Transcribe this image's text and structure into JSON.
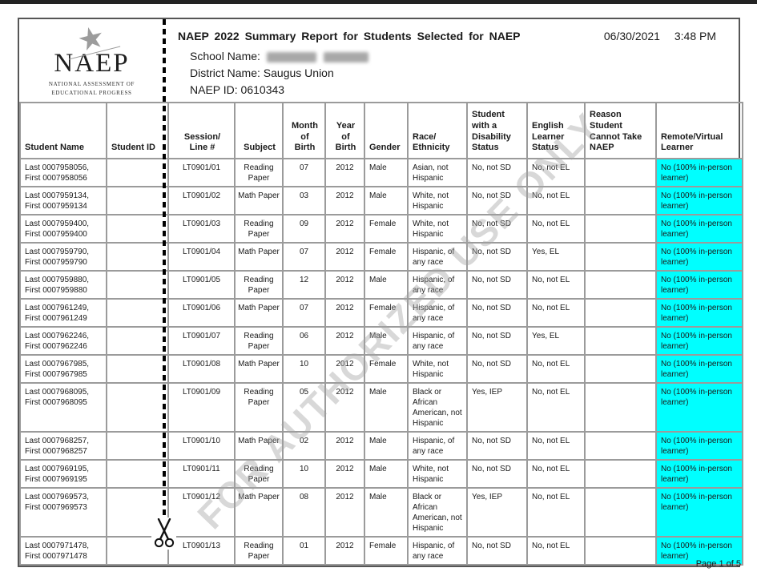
{
  "header": {
    "logo": {
      "acronym": "NAEP",
      "subtitle": "NATIONAL ASSESSMENT OF EDUCATIONAL PROGRESS"
    },
    "title": "NAEP 2022 Summary Report for Students Selected for NAEP",
    "date": "06/30/2021",
    "time": "3:48 PM",
    "school_label": "School Name:",
    "district_label": "District Name:",
    "district_value": "Saugus Union",
    "naep_id_label": "NAEP ID:",
    "naep_id_value": "0610343"
  },
  "watermark": "FOR AUTHORIZED USE ONLY",
  "footer": {
    "page_text": "Page 1 of 5"
  },
  "table": {
    "highlight_color": "#00ffff",
    "columns": [
      {
        "key": "name",
        "label": "Student Name"
      },
      {
        "key": "id",
        "label": "Student ID"
      },
      {
        "key": "session",
        "label": "Session/\nLine #"
      },
      {
        "key": "subject",
        "label": "Subject"
      },
      {
        "key": "month",
        "label": "Month\nof\nBirth"
      },
      {
        "key": "year",
        "label": "Year\nof\nBirth"
      },
      {
        "key": "gender",
        "label": "Gender"
      },
      {
        "key": "race",
        "label": "Race/\nEthnicity"
      },
      {
        "key": "disability",
        "label": "Student\nwith a\nDisability\nStatus"
      },
      {
        "key": "english",
        "label": "English\nLearner\nStatus"
      },
      {
        "key": "reason",
        "label": "Reason\nStudent\nCannot Take\nNAEP"
      },
      {
        "key": "remote",
        "label": "Remote/Virtual\nLearner"
      }
    ],
    "rows": [
      {
        "name": "Last 0007958056, First 0007958056",
        "id": "",
        "session": "LT0901/01",
        "subject": "Reading Paper",
        "month": "07",
        "year": "2012",
        "gender": "Male",
        "race": "Asian, not Hispanic",
        "disability": "No, not SD",
        "english": "No, not EL",
        "reason": "",
        "remote": "No (100% in-person learner)"
      },
      {
        "name": "Last 0007959134, First 0007959134",
        "id": "",
        "session": "LT0901/02",
        "subject": "Math Paper",
        "month": "03",
        "year": "2012",
        "gender": "Male",
        "race": "White, not Hispanic",
        "disability": "No, not SD",
        "english": "No, not EL",
        "reason": "",
        "remote": "No (100% in-person learner)"
      },
      {
        "name": "Last 0007959400, First 0007959400",
        "id": "",
        "session": "LT0901/03",
        "subject": "Reading Paper",
        "month": "09",
        "year": "2012",
        "gender": "Female",
        "race": "White, not Hispanic",
        "disability": "No, not SD",
        "english": "No, not EL",
        "reason": "",
        "remote": "No (100% in-person learner)"
      },
      {
        "name": "Last 0007959790, First 0007959790",
        "id": "",
        "session": "LT0901/04",
        "subject": "Math Paper",
        "month": "07",
        "year": "2012",
        "gender": "Female",
        "race": "Hispanic, of any race",
        "disability": "No, not SD",
        "english": "Yes, EL",
        "reason": "",
        "remote": "No (100% in-person learner)"
      },
      {
        "name": "Last 0007959880, First 0007959880",
        "id": "",
        "session": "LT0901/05",
        "subject": "Reading Paper",
        "month": "12",
        "year": "2012",
        "gender": "Male",
        "race": "Hispanic, of any race",
        "disability": "No, not SD",
        "english": "No, not EL",
        "reason": "",
        "remote": "No (100% in-person learner)"
      },
      {
        "name": "Last 0007961249, First 0007961249",
        "id": "",
        "session": "LT0901/06",
        "subject": "Math Paper",
        "month": "07",
        "year": "2012",
        "gender": "Female",
        "race": "Hispanic, of any race",
        "disability": "No, not SD",
        "english": "No, not EL",
        "reason": "",
        "remote": "No (100% in-person learner)"
      },
      {
        "name": "Last 0007962246, First 0007962246",
        "id": "",
        "session": "LT0901/07",
        "subject": "Reading Paper",
        "month": "06",
        "year": "2012",
        "gender": "Male",
        "race": "Hispanic, of any race",
        "disability": "No, not SD",
        "english": "Yes, EL",
        "reason": "",
        "remote": "No (100% in-person learner)"
      },
      {
        "name": "Last 0007967985, First 0007967985",
        "id": "",
        "session": "LT0901/08",
        "subject": "Math Paper",
        "month": "10",
        "year": "2012",
        "gender": "Female",
        "race": "White, not Hispanic",
        "disability": "No, not SD",
        "english": "No, not EL",
        "reason": "",
        "remote": "No (100% in-person learner)"
      },
      {
        "name": "Last 0007968095, First 0007968095",
        "id": "",
        "session": "LT0901/09",
        "subject": "Reading Paper",
        "month": "05",
        "year": "2012",
        "gender": "Male",
        "race": "Black or African American, not Hispanic",
        "disability": "Yes, IEP",
        "english": "No, not EL",
        "reason": "",
        "remote": "No (100% in-person learner)"
      },
      {
        "name": "Last 0007968257, First 0007968257",
        "id": "",
        "session": "LT0901/10",
        "subject": "Math Paper",
        "month": "02",
        "year": "2012",
        "gender": "Male",
        "race": "Hispanic, of any race",
        "disability": "No, not SD",
        "english": "No, not EL",
        "reason": "",
        "remote": "No (100% in-person learner)"
      },
      {
        "name": "Last 0007969195, First 0007969195",
        "id": "",
        "session": "LT0901/11",
        "subject": "Reading Paper",
        "month": "10",
        "year": "2012",
        "gender": "Male",
        "race": "White, not Hispanic",
        "disability": "No, not SD",
        "english": "No, not EL",
        "reason": "",
        "remote": "No (100% in-person learner)"
      },
      {
        "name": "Last 0007969573, First 0007969573",
        "id": "",
        "session": "LT0901/12",
        "subject": "Math Paper",
        "month": "08",
        "year": "2012",
        "gender": "Male",
        "race": "Black or African American, not Hispanic",
        "disability": "Yes, IEP",
        "english": "No, not EL",
        "reason": "",
        "remote": "No (100% in-person learner)"
      },
      {
        "name": "Last 0007971478, First 0007971478",
        "id": "",
        "session": "LT0901/13",
        "subject": "Reading Paper",
        "month": "01",
        "year": "2012",
        "gender": "Female",
        "race": "Hispanic, of any race",
        "disability": "No, not SD",
        "english": "No, not EL",
        "reason": "",
        "remote": "No (100% in-person learner)"
      }
    ]
  }
}
